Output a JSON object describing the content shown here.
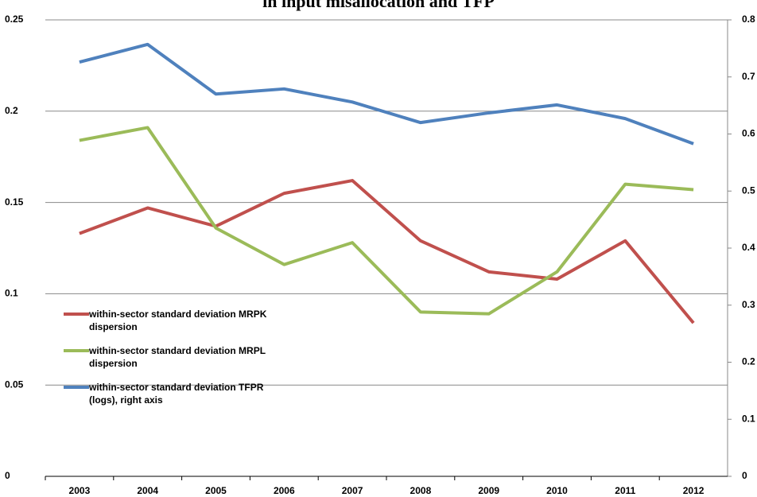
{
  "chart_data": {
    "type": "line",
    "title": "in input misallocation and TFP",
    "categories": [
      "2003",
      "2004",
      "2005",
      "2006",
      "2007",
      "2008",
      "2009",
      "2010",
      "2011",
      "2012"
    ],
    "series": [
      {
        "name": "within-sector standard deviation MRPK dispersion",
        "color": "#c0504d",
        "values": [
          0.133,
          0.147,
          0.137,
          0.155,
          0.162,
          0.129,
          0.112,
          0.108,
          0.129,
          0.084
        ]
      },
      {
        "name": "within-sector standard deviation MRPL dispersion",
        "color": "#9bbb59",
        "values": [
          0.184,
          0.191,
          0.136,
          0.116,
          0.128,
          0.09,
          0.089,
          0.112,
          0.16,
          0.157
        ]
      },
      {
        "name": "within-sector standard deviation TFPR (logs), right axis",
        "color": "#4f81bd",
        "axis": "y2",
        "values": [
          0.726,
          0.757,
          0.67,
          0.679,
          0.656,
          0.62,
          0.637,
          0.651,
          0.627,
          0.583
        ]
      }
    ],
    "ylim": [
      0,
      0.25
    ],
    "yticks": [
      0,
      0.05,
      0.1,
      0.15,
      0.2,
      0.25
    ],
    "y2lim": [
      0,
      0.8
    ],
    "y2ticks": [
      0,
      0.1,
      0.2,
      0.3,
      0.4,
      0.5,
      0.6,
      0.7,
      0.8
    ],
    "grid": true,
    "legend": "left"
  }
}
